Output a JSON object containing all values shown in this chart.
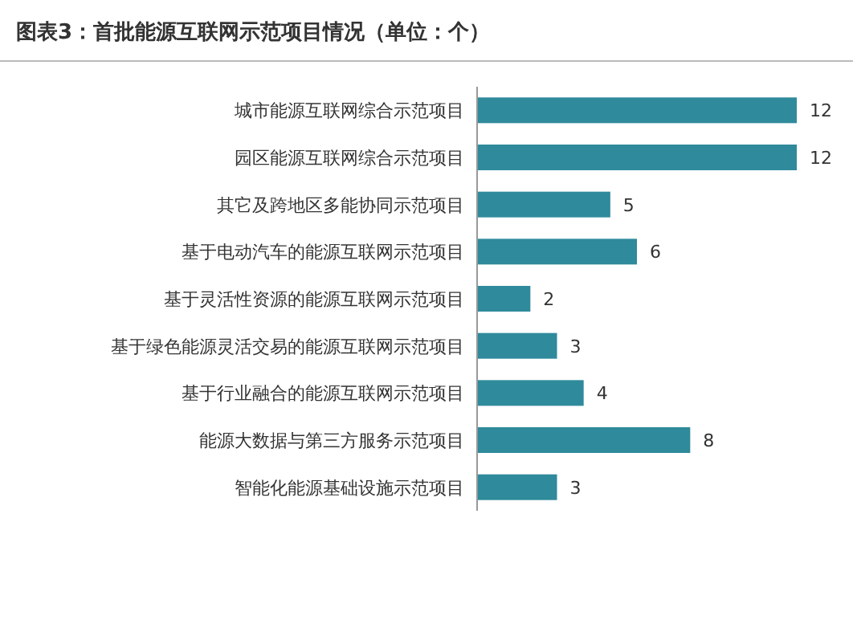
{
  "chart_data": {
    "type": "bar",
    "orientation": "horizontal",
    "title": "图表3：首批能源互联网示范项目情况（单位：个）",
    "categories": [
      "城市能源互联网综合示范项目",
      "园区能源互联网综合示范项目",
      "其它及跨地区多能协同示范项目",
      "基于电动汽车的能源互联网示范项目",
      "基于灵活性资源的能源互联网示范项目",
      "基于绿色能源灵活交易的能源互联网示范项目",
      "基于行业融合的能源互联网示范项目",
      "能源大数据与第三方服务示范项目",
      "智能化能源基础设施示范项目"
    ],
    "values": [
      12,
      12,
      5,
      6,
      2,
      3,
      4,
      8,
      3
    ],
    "color": "#2f8a9b",
    "data_labels": true
  }
}
